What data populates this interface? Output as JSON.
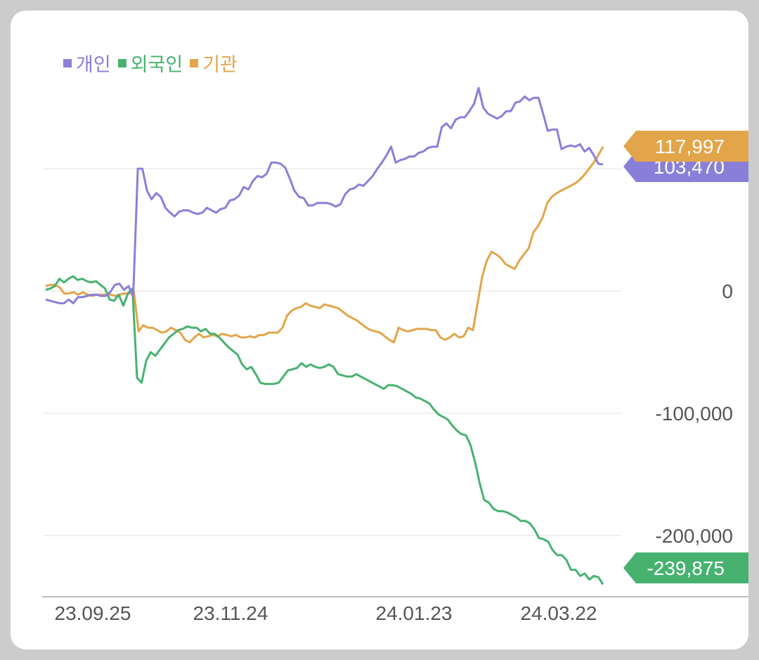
{
  "chart_data": {
    "type": "line",
    "legend_position": "top-left",
    "x_tick_labels": [
      "23.09.25",
      "23.11.24",
      "24.01.23",
      "24.03.22"
    ],
    "y_tick_labels": [
      "0",
      "-100,000",
      "-200,000"
    ],
    "y_ticks": [
      100000,
      0,
      -100000,
      -200000
    ],
    "ylim": [
      -250000,
      200000
    ],
    "grid": true,
    "series": [
      {
        "name": "개인",
        "color": "#8a7fd8",
        "last_label": "103,470",
        "values": [
          -7000,
          -8000,
          -9000,
          -10000,
          -10000,
          -7000,
          -10000,
          -5000,
          -5000,
          -4000,
          -3000,
          -3000,
          -4000,
          -4000,
          -1000,
          5000,
          6000,
          1000,
          4000,
          -5000,
          100000,
          100000,
          82000,
          75000,
          80000,
          77000,
          68000,
          64000,
          61000,
          65000,
          66000,
          66000,
          64000,
          63000,
          64000,
          68000,
          66000,
          64000,
          67000,
          68000,
          74000,
          75000,
          78000,
          85000,
          83000,
          90000,
          94000,
          93000,
          96000,
          105000,
          105000,
          104000,
          101000,
          92000,
          82000,
          77000,
          76000,
          70000,
          70000,
          72000,
          72000,
          72000,
          71000,
          69000,
          71000,
          79000,
          83000,
          84000,
          87000,
          86000,
          90000,
          94000,
          100000,
          105000,
          111000,
          118000,
          105000,
          107000,
          108000,
          110000,
          110000,
          113000,
          114000,
          117000,
          118000,
          118000,
          134000,
          137000,
          133000,
          140000,
          142000,
          142000,
          147000,
          153000,
          166000,
          150000,
          145000,
          143000,
          141000,
          143000,
          147000,
          147000,
          154000,
          155000,
          159000,
          156000,
          158000,
          158000,
          145000,
          131000,
          132000,
          132000,
          116000,
          118000,
          119000,
          118000,
          120000,
          114000,
          117000,
          111000,
          104000,
          103470
        ]
      },
      {
        "name": "외국인",
        "color": "#47b26f",
        "last_label": "-239,875",
        "values": [
          1000,
          2000,
          4000,
          10000,
          7000,
          10000,
          12000,
          9000,
          10000,
          8000,
          7000,
          8000,
          5000,
          2000,
          -7000,
          -8000,
          -3000,
          -12000,
          -2000,
          2000,
          -71000,
          -75000,
          -57000,
          -50000,
          -53000,
          -48000,
          -43000,
          -38000,
          -35000,
          -32000,
          -31000,
          -29000,
          -30000,
          -30000,
          -33000,
          -31000,
          -35000,
          -35000,
          -38000,
          -42000,
          -46000,
          -49000,
          -52000,
          -60000,
          -64000,
          -62000,
          -68000,
          -75000,
          -76000,
          -76000,
          -76000,
          -75000,
          -70000,
          -65000,
          -64000,
          -63000,
          -59000,
          -62000,
          -60000,
          -62000,
          -63000,
          -62000,
          -60000,
          -62000,
          -68000,
          -69000,
          -70000,
          -70000,
          -68000,
          -70000,
          -72000,
          -74000,
          -76000,
          -78000,
          -80000,
          -77000,
          -77000,
          -78000,
          -80000,
          -82000,
          -84000,
          -87000,
          -88000,
          -90000,
          -92000,
          -97000,
          -101000,
          -103000,
          -105000,
          -110000,
          -114000,
          -117000,
          -118000,
          -126000,
          -140000,
          -157000,
          -171000,
          -173000,
          -178000,
          -180000,
          -180000,
          -181000,
          -183000,
          -185000,
          -188000,
          -188000,
          -190000,
          -195000,
          -202000,
          -203000,
          -205000,
          -212000,
          -216000,
          -216000,
          -220000,
          -228000,
          -228000,
          -233000,
          -231000,
          -236000,
          -233000,
          -234000,
          -239875
        ]
      },
      {
        "name": "기관",
        "color": "#e2a54a",
        "last_label": "117,997",
        "values": [
          4000,
          5000,
          5000,
          3000,
          -2000,
          -2000,
          -1000,
          -3000,
          -1000,
          -3000,
          -4000,
          -3000,
          -3000,
          -3000,
          -3000,
          -4000,
          -3000,
          -2000,
          -2000,
          -1000,
          -33000,
          -28000,
          -30000,
          -30000,
          -32000,
          -34000,
          -33000,
          -30000,
          -32000,
          -34000,
          -40000,
          -42000,
          -38000,
          -35000,
          -38000,
          -37000,
          -36000,
          -37000,
          -35000,
          -36000,
          -37000,
          -36000,
          -38000,
          -38000,
          -37000,
          -38000,
          -36000,
          -36000,
          -34000,
          -34000,
          -34000,
          -30000,
          -20000,
          -16000,
          -14000,
          -13000,
          -10000,
          -12000,
          -13000,
          -14000,
          -11000,
          -12000,
          -13000,
          -14000,
          -17000,
          -20000,
          -22000,
          -24000,
          -27000,
          -30000,
          -32000,
          -33000,
          -34000,
          -37000,
          -40000,
          -42000,
          -30000,
          -32000,
          -33000,
          -32000,
          -31000,
          -31000,
          -31000,
          -32000,
          -32000,
          -38000,
          -40000,
          -38000,
          -35000,
          -38000,
          -37000,
          -30000,
          -32000,
          -10000,
          12000,
          25000,
          32000,
          30000,
          27000,
          22000,
          20000,
          18000,
          25000,
          30000,
          35000,
          48000,
          53000,
          60000,
          72000,
          77000,
          80000,
          82000,
          84000,
          86000,
          88000,
          91000,
          95000,
          100000,
          105000,
          111000,
          117997
        ]
      }
    ]
  }
}
